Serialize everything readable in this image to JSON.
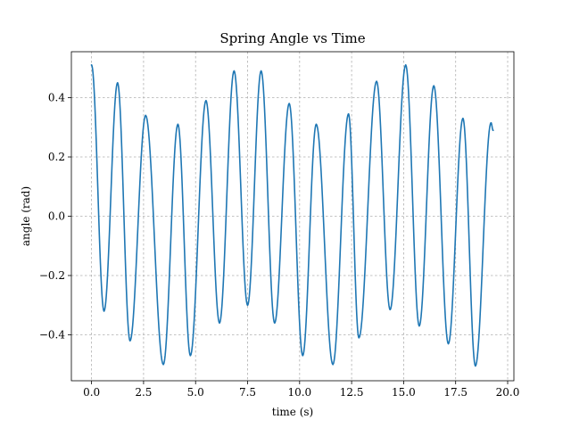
{
  "chart_data": {
    "type": "line",
    "title": "Spring Angle vs Time",
    "xlabel": "time (s)",
    "ylabel": "angle (rad)",
    "xlim": [
      -0.97,
      20.3
    ],
    "ylim": [
      -0.555,
      0.555
    ],
    "xticks": [
      0.0,
      2.5,
      5.0,
      7.5,
      10.0,
      12.5,
      15.0,
      17.5,
      20.0
    ],
    "xtick_labels": [
      "0.0",
      "2.5",
      "5.0",
      "7.5",
      "10.0",
      "12.5",
      "15.0",
      "17.5",
      "20.0"
    ],
    "yticks": [
      -0.4,
      -0.2,
      0.0,
      0.2,
      0.4
    ],
    "ytick_labels": [
      "−0.4",
      "−0.2",
      "0.0",
      "0.2",
      "0.4"
    ],
    "grid": true,
    "series": [
      {
        "color": "#1f77b4",
        "x": [
          0.0,
          0.6,
          1.25,
          1.85,
          2.6,
          3.45,
          4.15,
          4.75,
          5.5,
          6.15,
          6.85,
          7.5,
          8.15,
          8.8,
          9.5,
          10.15,
          10.8,
          11.6,
          12.35,
          12.85,
          13.7,
          14.35,
          15.1,
          15.75,
          16.45,
          17.15,
          17.85,
          18.45,
          19.2,
          19.3
        ],
        "y": [
          0.51,
          -0.32,
          0.45,
          -0.42,
          0.34,
          -0.5,
          0.31,
          -0.47,
          0.39,
          -0.36,
          0.49,
          -0.3,
          0.49,
          -0.36,
          0.38,
          -0.47,
          0.31,
          -0.5,
          0.345,
          -0.41,
          0.455,
          -0.315,
          0.51,
          -0.37,
          0.44,
          -0.43,
          0.33,
          -0.505,
          0.315,
          0.29
        ]
      }
    ]
  }
}
